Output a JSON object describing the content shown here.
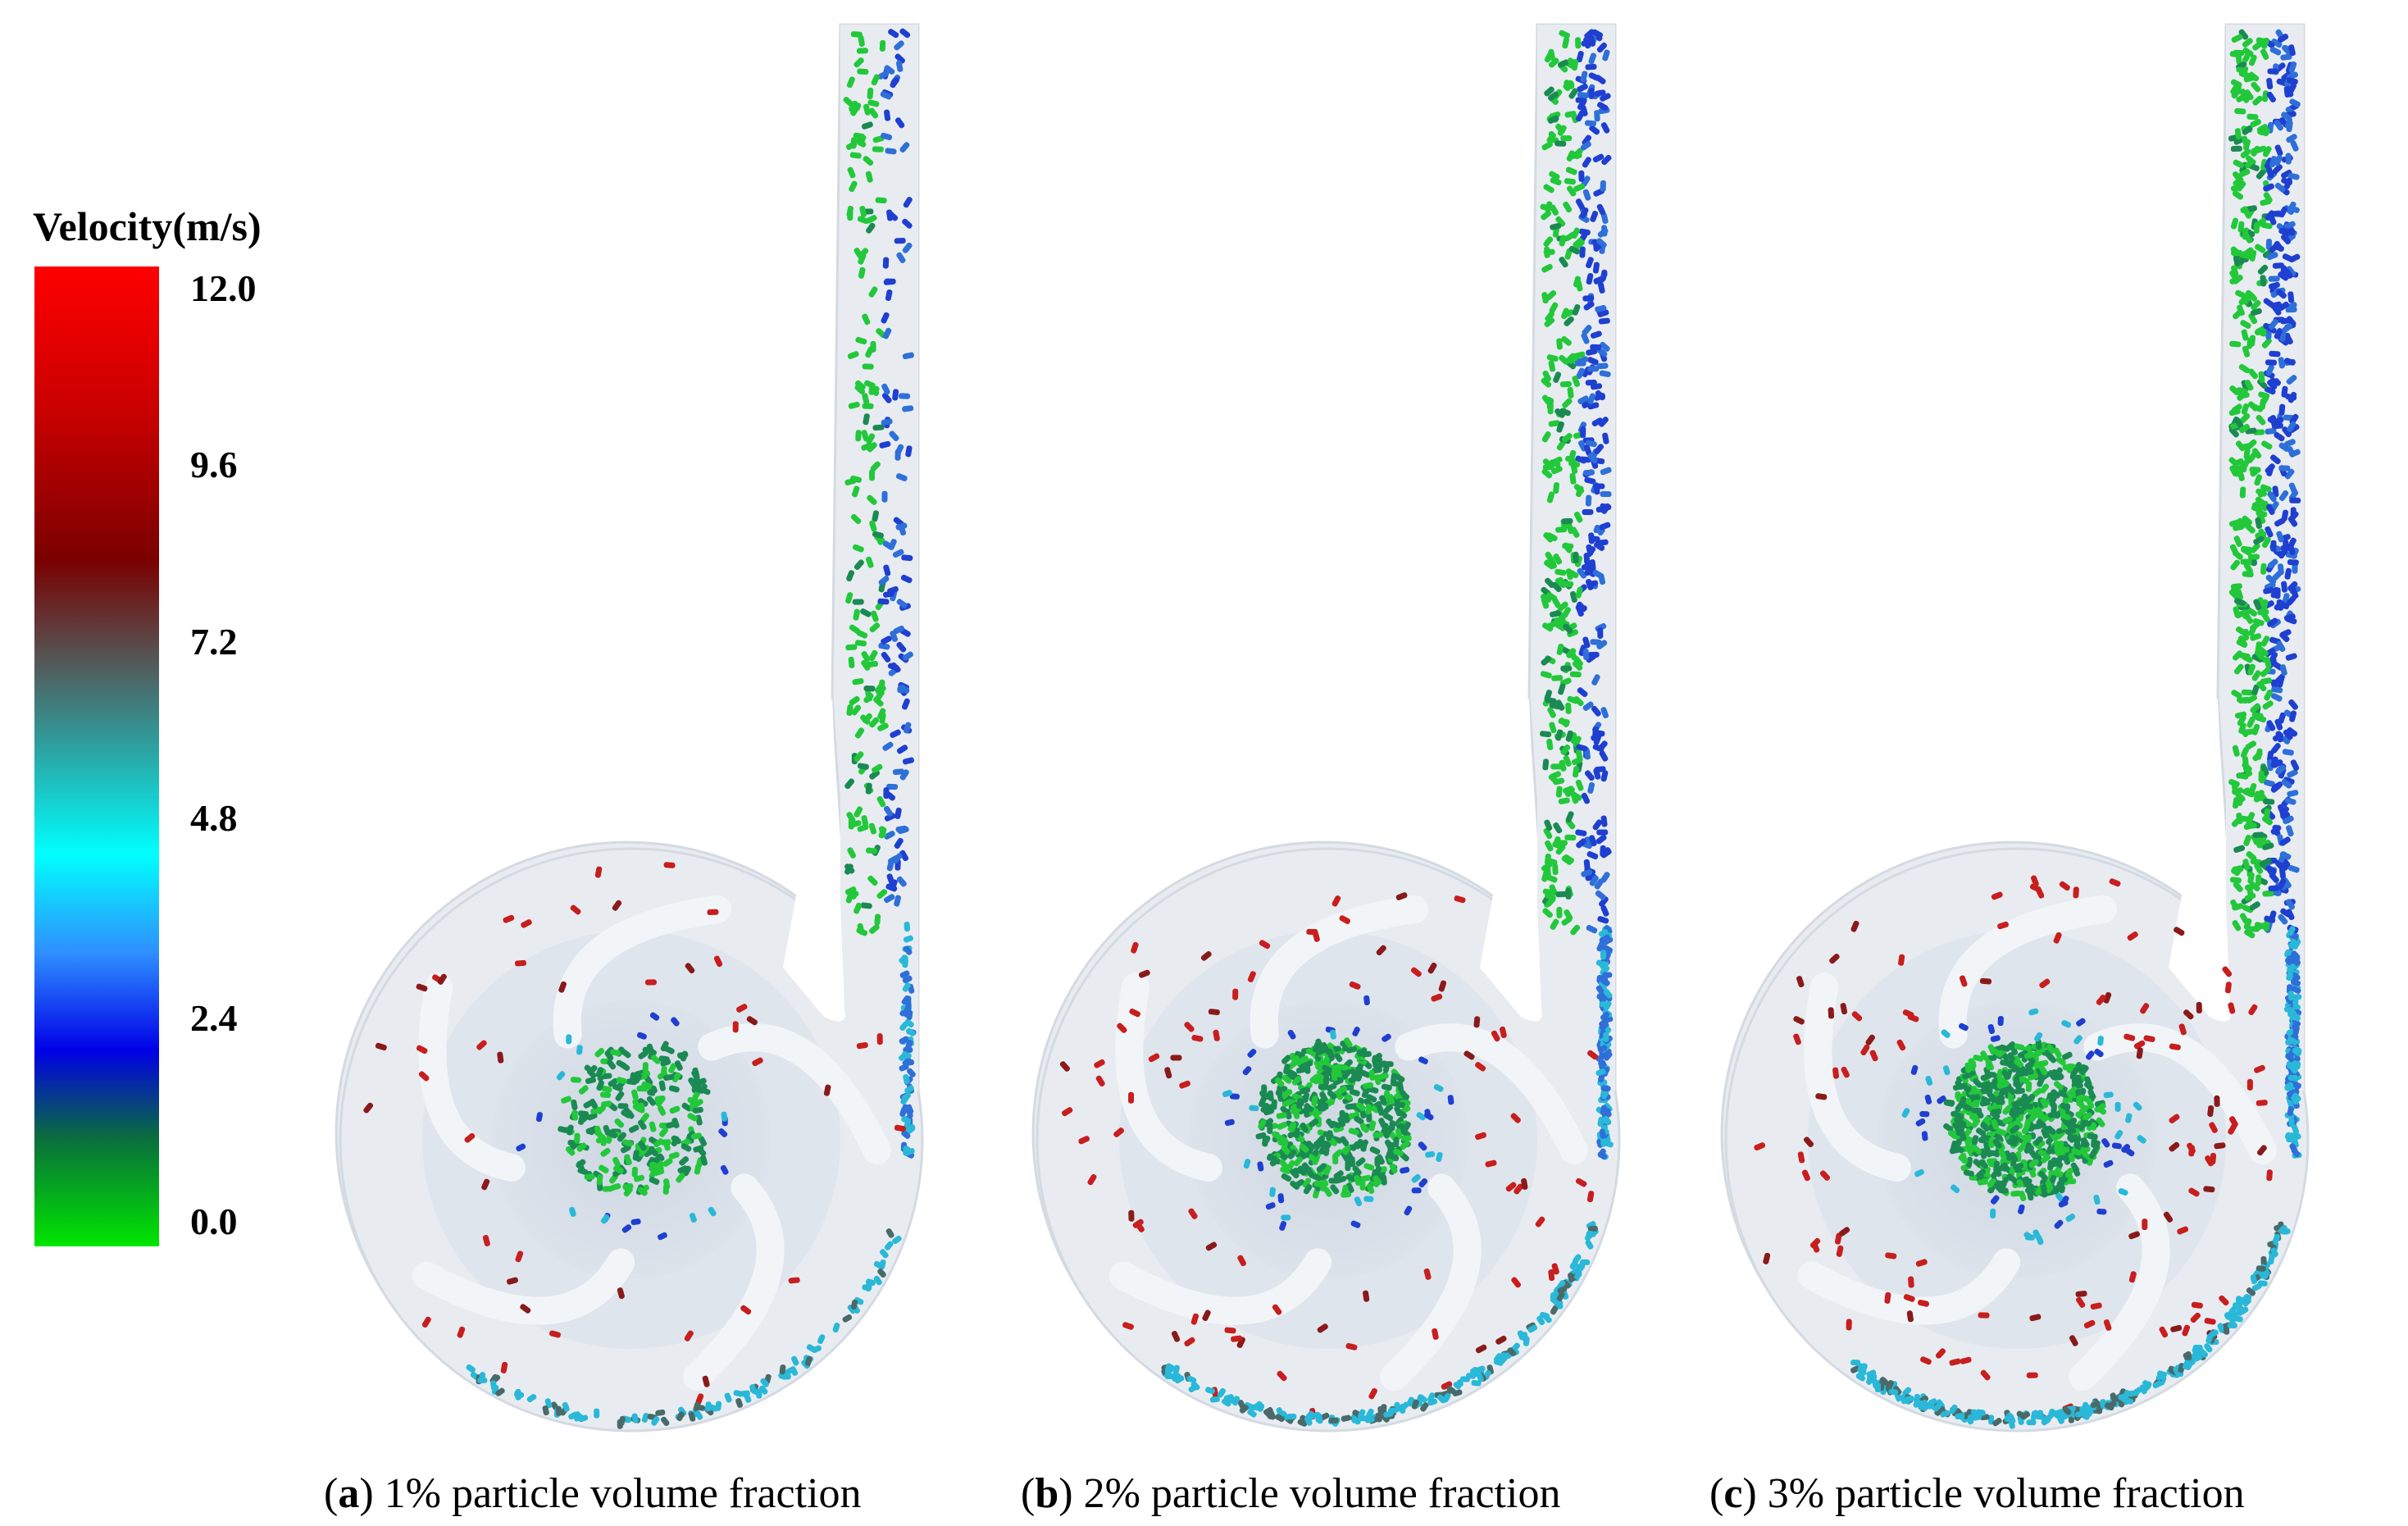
{
  "colorbar": {
    "title": "Velocity(m/s)",
    "ticks": [
      "12.0",
      "9.6",
      "7.2",
      "4.8",
      "2.4",
      "0.0"
    ],
    "colors": [
      "#00e600",
      "#0a6e3c",
      "#0000e6",
      "#2f8fff",
      "#00ffff",
      "#2aa8a8",
      "#555555",
      "#7a0000",
      "#c80000",
      "#ff0000"
    ]
  },
  "panels": [
    {
      "letter": "a",
      "label": "1% particle volume fraction"
    },
    {
      "letter": "b",
      "label": "2% particle volume fraction"
    },
    {
      "letter": "c",
      "label": "3% particle volume fraction"
    }
  ],
  "particle_colors": {
    "green": "#22c83a",
    "darkgreen": "#1a8a52",
    "blue": "#1f3fd0",
    "midblue": "#2f6fd8",
    "cyan": "#2ab8d8",
    "red": "#c81e1e",
    "darkred": "#8a1a1a",
    "gray": "#4a6a6a"
  },
  "casing_color": "#e8ecf1"
}
